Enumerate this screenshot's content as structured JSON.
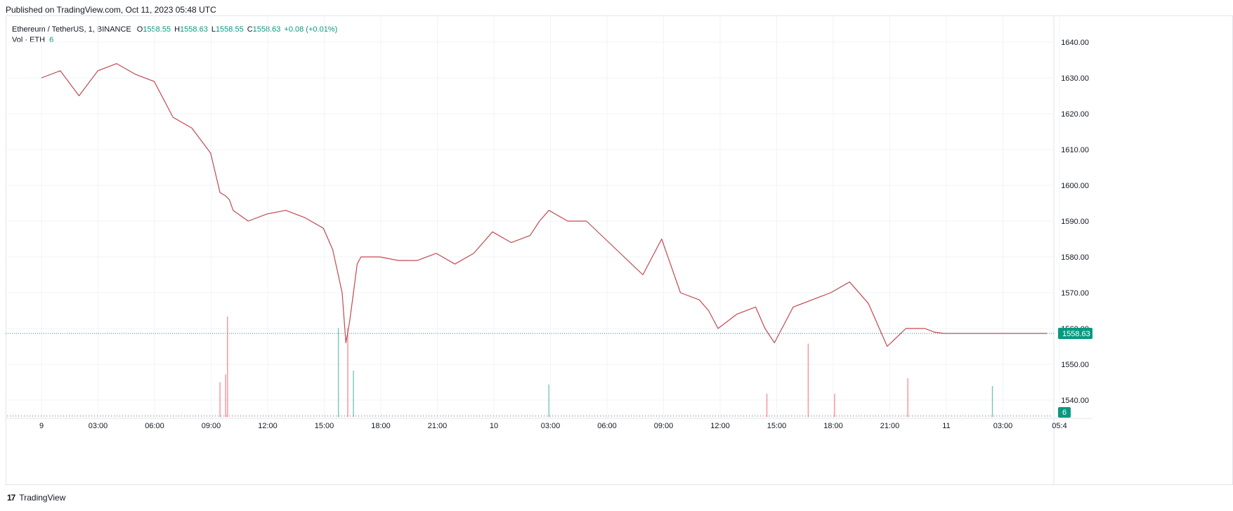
{
  "header": {
    "published": "Published on TradingView.com, Oct 11, 2023 05:48 UTC"
  },
  "legend": {
    "symbol": "Ethereum / TetherUS, 1, BINANCE",
    "open_label": "O",
    "open": "1558.55",
    "high_label": "H",
    "high": "1558.63",
    "low_label": "L",
    "low": "1558.55",
    "close_label": "C",
    "close": "1558.63",
    "change": "+0.08 (+0.01%)",
    "volume_label": "Vol · ETH",
    "volume": "6"
  },
  "footer": {
    "brand": "TradingView",
    "logo_glyph": "17"
  },
  "colors": {
    "up": "#089981",
    "down": "#f23645",
    "grid": "#f0f3fa",
    "text": "#131722",
    "last_price": "#089981"
  },
  "chart_data": {
    "type": "line",
    "title": "",
    "xlabel": "",
    "ylabel": "",
    "ylim": [
      1535,
      1645
    ],
    "grid": true,
    "y_ticks": [
      "1640.00",
      "1630.00",
      "1620.00",
      "1610.00",
      "1600.00",
      "1590.00",
      "1580.00",
      "1570.00",
      "1560.00",
      "1550.00",
      "1540.00"
    ],
    "x_ticks": [
      "9",
      "03:00",
      "06:00",
      "09:00",
      "12:00",
      "15:00",
      "18:00",
      "21:00",
      "10",
      "03:00",
      "06:00",
      "09:00",
      "12:00",
      "15:00",
      "18:00",
      "21:00",
      "11",
      "03:00",
      "05:4"
    ],
    "last_price": 1558.63,
    "last_price_label": "1558.63",
    "last_volume_label": "6",
    "series": [
      {
        "x_hours": [
          0,
          1,
          2,
          3,
          4,
          5,
          6,
          7,
          8,
          9,
          9.5,
          9.8,
          10,
          10.2,
          11,
          12,
          13,
          14,
          15,
          15.5,
          16,
          16.2,
          16.4,
          16.6,
          16.8,
          17,
          17.5,
          18,
          19,
          20,
          21,
          22,
          23,
          24,
          25,
          26,
          26.5,
          27,
          28,
          29,
          30,
          31,
          32,
          33,
          34,
          35,
          35.5,
          36,
          37,
          38,
          38.5,
          39,
          40,
          41,
          41.5,
          42,
          43,
          44,
          45,
          46,
          47,
          47.5,
          48,
          49,
          50,
          50.5,
          51,
          51.3,
          51.5,
          52,
          53,
          53.5
        ],
        "values": [
          1630,
          1632,
          1625,
          1632,
          1634,
          1631,
          1629,
          1619,
          1616,
          1609,
          1598,
          1597,
          1596,
          1593,
          1590,
          1592,
          1593,
          1591,
          1588,
          1582,
          1570,
          1556,
          1562,
          1570,
          1578,
          1580,
          1580,
          1580,
          1579,
          1579,
          1581,
          1578,
          1581,
          1587,
          1584,
          1586,
          1590,
          1593,
          1590,
          1590,
          1585,
          1580,
          1575,
          1585,
          1570,
          1568,
          1565,
          1560,
          1564,
          1566,
          1560,
          1556,
          1566,
          1568,
          1569,
          1570,
          1573,
          1567,
          1555,
          1560,
          1560,
          1559,
          1558.63,
          1558.63,
          1558.63,
          1558.63,
          1558.63,
          1558.63,
          1558.63,
          1558.63,
          1558.63,
          1558.63
        ]
      }
    ],
    "volume_spikes": [
      {
        "x_hours": 9.5,
        "volume": 45,
        "dir": "down"
      },
      {
        "x_hours": 9.8,
        "volume": 55,
        "dir": "down"
      },
      {
        "x_hours": 9.9,
        "volume": 130,
        "dir": "down"
      },
      {
        "x_hours": 15.8,
        "volume": 115,
        "dir": "up"
      },
      {
        "x_hours": 16.3,
        "volume": 115,
        "dir": "down"
      },
      {
        "x_hours": 16.6,
        "volume": 60,
        "dir": "up"
      },
      {
        "x_hours": 27.0,
        "volume": 42,
        "dir": "up"
      },
      {
        "x_hours": 38.6,
        "volume": 30,
        "dir": "down"
      },
      {
        "x_hours": 40.8,
        "volume": 95,
        "dir": "down"
      },
      {
        "x_hours": 42.2,
        "volume": 30,
        "dir": "down"
      },
      {
        "x_hours": 46.1,
        "volume": 50,
        "dir": "down"
      },
      {
        "x_hours": 50.6,
        "volume": 40,
        "dir": "up"
      }
    ]
  }
}
